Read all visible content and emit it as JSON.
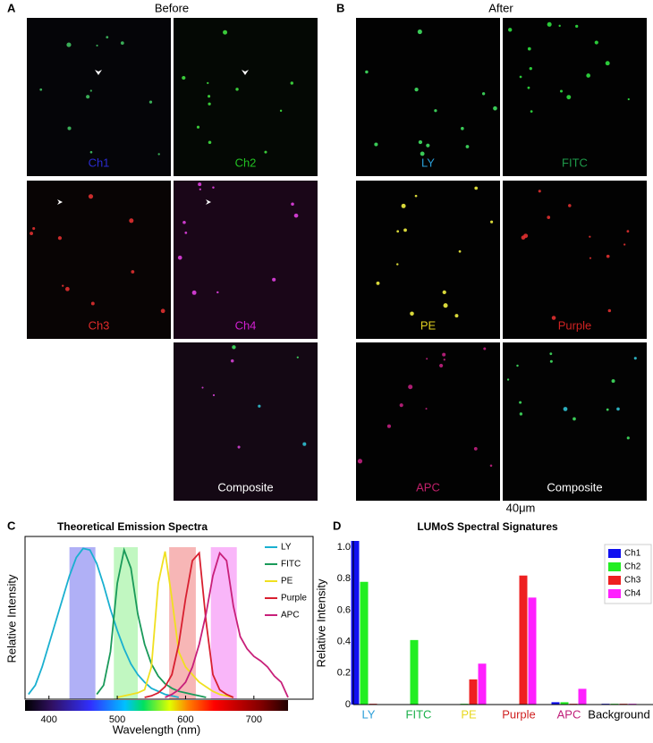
{
  "figure": {
    "panel_labels": [
      "A",
      "B",
      "C",
      "D"
    ],
    "before": {
      "title": "Before",
      "panels": [
        {
          "label": "Ch1",
          "color": "#2b2bd0"
        },
        {
          "label": "Ch2",
          "color": "#22c022"
        },
        {
          "label": "Ch3",
          "color": "#e02a2a"
        },
        {
          "label": "Ch4",
          "color": "#d020d0"
        },
        {
          "label": "Composite",
          "color": "#ffffff"
        }
      ]
    },
    "after": {
      "title": "After",
      "panels": [
        {
          "label": "LY",
          "color": "#2a9ed8"
        },
        {
          "label": "FITC",
          "color": "#1e9a4a"
        },
        {
          "label": "PE",
          "color": "#e0d020"
        },
        {
          "label": "Purple",
          "color": "#d02222"
        },
        {
          "label": "APC",
          "color": "#c0206a"
        },
        {
          "label": "Composite",
          "color": "#ffffff"
        }
      ]
    },
    "scale_bar": "40μm"
  },
  "chart_data": [
    {
      "type": "line",
      "title": "Theoretical Emission Spectra",
      "xlabel": "Wavelength (nm)",
      "ylabel": "Relative Intensity",
      "xlim": [
        365,
        750
      ],
      "ylim": [
        0,
        1
      ],
      "xticks": [
        400,
        500,
        600,
        700
      ],
      "x": [
        370,
        380,
        390,
        400,
        410,
        420,
        430,
        440,
        450,
        460,
        470,
        480,
        490,
        500,
        510,
        520,
        530,
        540,
        550,
        560,
        570,
        580,
        590,
        600,
        610,
        620,
        630,
        640,
        650,
        660,
        670,
        680,
        690,
        700,
        710,
        720,
        730,
        740,
        750
      ],
      "bands": [
        {
          "x": [
            430,
            468
          ],
          "color": "#7070ee"
        },
        {
          "x": [
            495,
            530
          ],
          "color": "#8ef08e"
        },
        {
          "x": [
            576,
            615
          ],
          "color": "#f07a7a"
        },
        {
          "x": [
            637,
            675
          ],
          "color": "#f47af4"
        }
      ],
      "series": [
        {
          "name": "LY",
          "color": "#1ab0d0",
          "values": [
            0.02,
            0.08,
            0.2,
            0.35,
            0.5,
            0.65,
            0.8,
            0.92,
            0.98,
            0.97,
            0.88,
            0.74,
            0.58,
            0.44,
            0.32,
            0.22,
            0.15,
            0.1,
            0.06,
            0.04,
            0.02,
            0.01,
            0.0,
            null,
            null,
            null,
            null,
            null,
            null,
            null,
            null,
            null,
            null,
            null,
            null,
            null,
            null,
            null,
            null
          ]
        },
        {
          "name": "FITC",
          "color": "#1a9a5a",
          "values": [
            null,
            null,
            null,
            null,
            null,
            null,
            null,
            null,
            null,
            null,
            0.02,
            0.08,
            0.3,
            0.75,
            0.97,
            0.85,
            0.55,
            0.35,
            0.22,
            0.14,
            0.09,
            0.06,
            0.04,
            0.03,
            0.02,
            0.01,
            0.0,
            null,
            null,
            null,
            null,
            null,
            null,
            null,
            null,
            null,
            null,
            null,
            null
          ]
        },
        {
          "name": "PE",
          "color": "#f0e020",
          "values": [
            null,
            null,
            null,
            null,
            null,
            null,
            null,
            null,
            null,
            null,
            null,
            null,
            null,
            0.0,
            0.01,
            0.02,
            0.03,
            0.05,
            0.2,
            0.75,
            0.96,
            0.65,
            0.3,
            0.2,
            0.15,
            0.1,
            0.07,
            0.04,
            0.02,
            0.01,
            0.0,
            null,
            null,
            null,
            null,
            null,
            null,
            null,
            null
          ]
        },
        {
          "name": "Purple",
          "color": "#d82030",
          "values": [
            null,
            null,
            null,
            null,
            null,
            null,
            null,
            null,
            null,
            null,
            null,
            null,
            null,
            null,
            null,
            null,
            null,
            0.0,
            0.01,
            0.03,
            0.07,
            0.15,
            0.35,
            0.65,
            0.9,
            0.95,
            0.5,
            0.15,
            0.05,
            0.02,
            0.0,
            null,
            null,
            null,
            null,
            null,
            null,
            null,
            null
          ]
        },
        {
          "name": "APC",
          "color": "#c8207a",
          "values": [
            null,
            null,
            null,
            null,
            null,
            null,
            null,
            null,
            null,
            null,
            null,
            null,
            null,
            null,
            null,
            null,
            null,
            null,
            null,
            null,
            0.0,
            0.02,
            0.05,
            0.1,
            0.2,
            0.35,
            0.55,
            0.8,
            0.95,
            0.9,
            0.6,
            0.4,
            0.32,
            0.27,
            0.24,
            0.2,
            0.14,
            0.1,
            0.0
          ]
        }
      ]
    },
    {
      "type": "bar",
      "title": "LUMoS Spectral Signatures",
      "ylabel": "Relative Intensity",
      "categories": [
        "LY",
        "FITC",
        "PE",
        "Purple",
        "APC",
        "Background"
      ],
      "category_colors": [
        "#2a9ed8",
        "#1ab04a",
        "#e8d820",
        "#d02222",
        "#c0207a",
        "#000000"
      ],
      "ylim": [
        0,
        1.04
      ],
      "yticks": [
        0,
        0.2,
        0.4,
        0.6,
        0.8,
        {
          "value": 1,
          "label": "1.0"
        }
      ],
      "legend": "top-right",
      "series": [
        {
          "name": "Ch1",
          "color": "#1010f0",
          "values": [
            1.04,
            0,
            0,
            0,
            0.015,
            0.005
          ]
        },
        {
          "name": "Ch2",
          "color": "#22ee22",
          "values": [
            0.78,
            0.41,
            0.005,
            0,
            0.015,
            0.005
          ]
        },
        {
          "name": "Ch3",
          "color": "#ee2020",
          "values": [
            0.005,
            0,
            0.16,
            0.82,
            0.005,
            0.005
          ]
        },
        {
          "name": "Ch4",
          "color": "#ff20ff",
          "values": [
            0,
            0,
            0.26,
            0.68,
            0.1,
            0.005
          ]
        }
      ]
    }
  ]
}
